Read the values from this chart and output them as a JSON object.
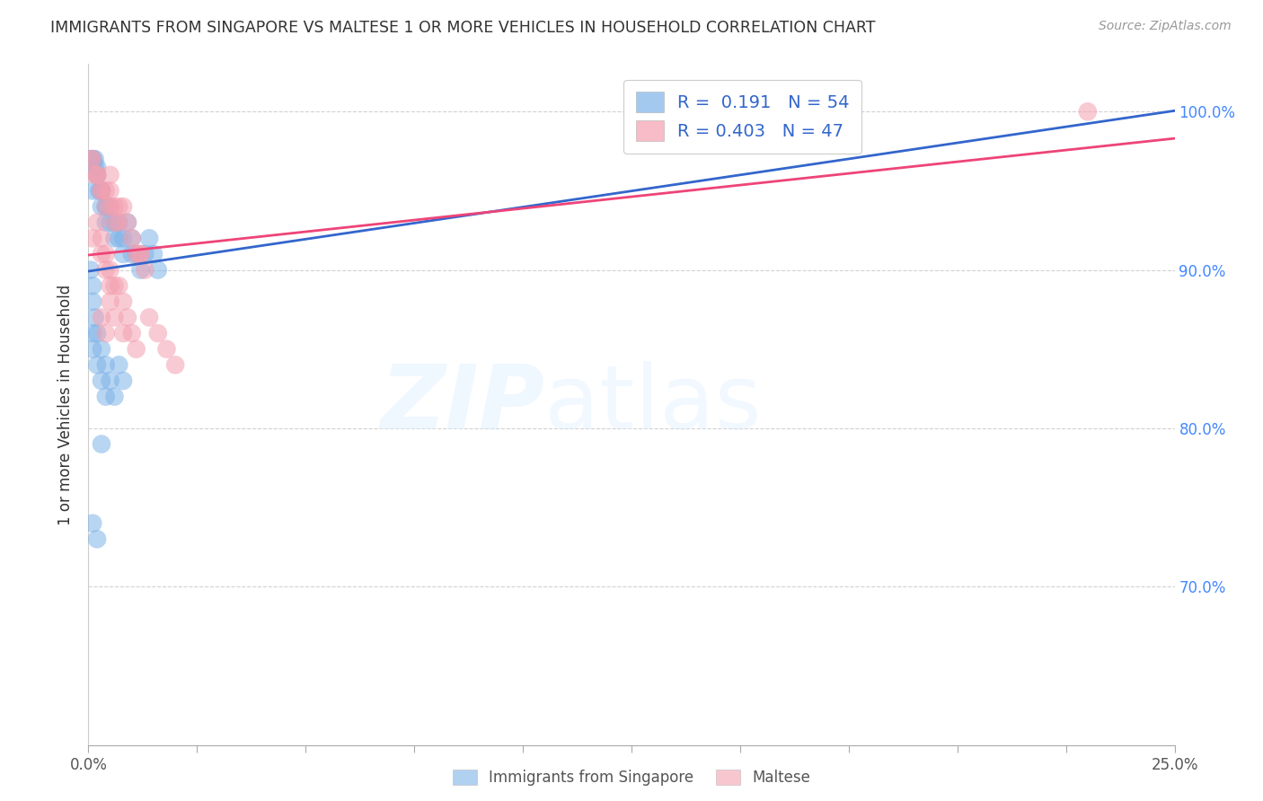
{
  "title": "IMMIGRANTS FROM SINGAPORE VS MALTESE 1 OR MORE VEHICLES IN HOUSEHOLD CORRELATION CHART",
  "source": "Source: ZipAtlas.com",
  "ylabel": "1 or more Vehicles in Household",
  "legend_label1": "Immigrants from Singapore",
  "legend_label2": "Maltese",
  "r1": 0.191,
  "n1": 54,
  "r2": 0.403,
  "n2": 47,
  "xlim": [
    0.0,
    0.25
  ],
  "ylim": [
    0.6,
    1.03
  ],
  "color_singapore": "#7EB3E8",
  "color_maltese": "#F4A0B0",
  "color_trend_singapore": "#3366CC",
  "color_trend_maltese": "#EE4477",
  "watermark_zip": "ZIP",
  "watermark_atlas": "atlas",
  "singapore_x": [
    0.0005,
    0.001,
    0.001,
    0.0015,
    0.0015,
    0.002,
    0.002,
    0.002,
    0.0025,
    0.003,
    0.003,
    0.003,
    0.003,
    0.003,
    0.004,
    0.004,
    0.004,
    0.005,
    0.005,
    0.006,
    0.006,
    0.007,
    0.007,
    0.008,
    0.008,
    0.009,
    0.01,
    0.01,
    0.011,
    0.012,
    0.013,
    0.014,
    0.015,
    0.016,
    0.001,
    0.001,
    0.0005,
    0.0015,
    0.002,
    0.003,
    0.004,
    0.005,
    0.006,
    0.007,
    0.008,
    0.001,
    0.001,
    0.002,
    0.003,
    0.004,
    0.001,
    0.002,
    0.003,
    0.001
  ],
  "singapore_y": [
    0.97,
    0.97,
    0.97,
    0.97,
    0.965,
    0.965,
    0.96,
    0.96,
    0.95,
    0.95,
    0.95,
    0.95,
    0.95,
    0.94,
    0.94,
    0.94,
    0.93,
    0.94,
    0.93,
    0.93,
    0.92,
    0.93,
    0.92,
    0.92,
    0.91,
    0.93,
    0.92,
    0.91,
    0.91,
    0.9,
    0.91,
    0.92,
    0.91,
    0.9,
    0.89,
    0.88,
    0.9,
    0.87,
    0.86,
    0.85,
    0.84,
    0.83,
    0.82,
    0.84,
    0.83,
    0.86,
    0.85,
    0.84,
    0.83,
    0.82,
    0.74,
    0.73,
    0.79,
    0.95
  ],
  "maltese_x": [
    0.0005,
    0.001,
    0.0015,
    0.002,
    0.002,
    0.003,
    0.003,
    0.004,
    0.004,
    0.005,
    0.005,
    0.005,
    0.006,
    0.006,
    0.007,
    0.007,
    0.008,
    0.009,
    0.01,
    0.011,
    0.012,
    0.013,
    0.001,
    0.002,
    0.003,
    0.004,
    0.005,
    0.006,
    0.007,
    0.008,
    0.009,
    0.01,
    0.011,
    0.012,
    0.014,
    0.016,
    0.018,
    0.02,
    0.003,
    0.004,
    0.005,
    0.006,
    0.23,
    0.008,
    0.005,
    0.003,
    0.004
  ],
  "maltese_y": [
    0.97,
    0.97,
    0.96,
    0.96,
    0.96,
    0.95,
    0.95,
    0.95,
    0.94,
    0.96,
    0.95,
    0.94,
    0.94,
    0.93,
    0.93,
    0.94,
    0.94,
    0.93,
    0.92,
    0.91,
    0.91,
    0.9,
    0.92,
    0.93,
    0.92,
    0.91,
    0.9,
    0.89,
    0.89,
    0.88,
    0.87,
    0.86,
    0.85,
    0.91,
    0.87,
    0.86,
    0.85,
    0.84,
    0.91,
    0.9,
    0.88,
    0.87,
    1.0,
    0.86,
    0.89,
    0.87,
    0.86
  ]
}
